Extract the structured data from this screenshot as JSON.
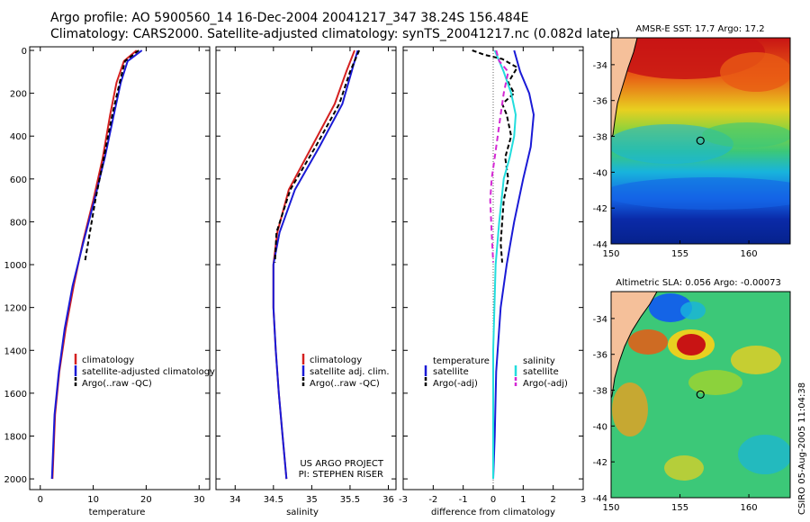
{
  "header": {
    "line1": "Argo profile: AO 5900560_14 16-Dec-2004 20041217_347 38.24S 156.484E",
    "line2": "Climatology: CARS2000. Satellite-adjusted climatology: synTS_20041217.nc (0.082d later)"
  },
  "colors": {
    "climatology": "#d42020",
    "satellite": "#1a1ad6",
    "argo": "#000000",
    "diff_salinity_sat": "#22dddd",
    "diff_salinity_argo": "#d428d4",
    "land": "#f5c09a"
  },
  "chart_data": [
    {
      "type": "line",
      "panel": "temperature",
      "xlabel": "temperature",
      "xlim": [
        -2,
        32
      ],
      "ylim": [
        0,
        2050
      ],
      "y_reversed": true,
      "xticks": [
        "0",
        "10",
        "20",
        "30"
      ],
      "yticks": [
        "0",
        "200",
        "400",
        "600",
        "800",
        "1000",
        "1200",
        "1400",
        "1600",
        "1800",
        "2000"
      ],
      "legend": [
        "climatology",
        "satellite-adjusted climatology",
        "Argo(..raw -QC)"
      ],
      "series": [
        {
          "name": "climatology",
          "x": [
            18.2,
            15.8,
            14.4,
            13.2,
            11.8,
            10.0,
            8.0,
            6.3,
            4.8,
            3.6,
            2.8,
            2.3
          ],
          "y": [
            0,
            50,
            150,
            300,
            500,
            700,
            900,
            1100,
            1300,
            1500,
            1700,
            2000
          ]
        },
        {
          "name": "satellite-adjusted climatology",
          "x": [
            19.2,
            16.5,
            15.2,
            13.9,
            12.2,
            10.2,
            8.1,
            6.1,
            4.6,
            3.5,
            2.7,
            2.2
          ],
          "y": [
            0,
            50,
            150,
            300,
            500,
            700,
            900,
            1100,
            1300,
            1500,
            1700,
            2000
          ]
        },
        {
          "name": "Argo(..raw -QC)",
          "x": [
            18.6,
            16.0,
            15.0,
            13.6,
            12.0,
            10.4,
            8.4
          ],
          "y": [
            0,
            50,
            150,
            300,
            500,
            700,
            990
          ]
        }
      ]
    },
    {
      "type": "line",
      "panel": "salinity",
      "xlabel": "salinity",
      "xlim": [
        33.75,
        36.1
      ],
      "ylim": [
        0,
        2050
      ],
      "y_reversed": true,
      "xticks": [
        "34",
        "34.5",
        "35",
        "35.5",
        "36"
      ],
      "legend": [
        "climatology",
        "satellite adj. clim.",
        "Argo(..raw -QC)"
      ],
      "series": [
        {
          "name": "climatology",
          "x": [
            35.56,
            35.45,
            35.3,
            35.0,
            34.7,
            34.55,
            34.5,
            34.5,
            34.53,
            34.57,
            34.62,
            34.67
          ],
          "y": [
            0,
            100,
            250,
            450,
            650,
            850,
            1000,
            1200,
            1400,
            1600,
            1800,
            2000
          ]
        },
        {
          "name": "satellite adj. clim.",
          "x": [
            35.6,
            35.52,
            35.4,
            35.1,
            34.78,
            34.58,
            34.5,
            34.5,
            34.53,
            34.57,
            34.62,
            34.67
          ],
          "y": [
            0,
            100,
            250,
            450,
            650,
            850,
            1000,
            1200,
            1400,
            1600,
            1800,
            2000
          ]
        },
        {
          "name": "Argo(..raw -QC)",
          "x": [
            35.62,
            35.5,
            35.36,
            35.05,
            34.72,
            34.54,
            34.52
          ],
          "y": [
            0,
            100,
            250,
            450,
            650,
            850,
            990
          ]
        }
      ],
      "annotation": [
        "US ARGO PROJECT",
        "PI: STEPHEN RISER"
      ]
    },
    {
      "type": "line",
      "panel": "difference",
      "xlabel": "difference from climatology",
      "xlim": [
        -3,
        3
      ],
      "ylim": [
        0,
        2050
      ],
      "y_reversed": true,
      "xticks": [
        "-3",
        "-2",
        "-1",
        "0",
        "1",
        "2",
        "3"
      ],
      "legend_temperature_title": "temperature",
      "legend_salinity_title": "salinity",
      "legend_temperature": [
        "satellite",
        "Argo(-adj)"
      ],
      "legend_salinity": [
        "satellite",
        "Argo(-adj)"
      ],
      "series": [
        {
          "name": "temperature satellite",
          "x": [
            0.7,
            0.9,
            1.2,
            1.35,
            1.25,
            1.0,
            0.7,
            0.45,
            0.25,
            0.1,
            0.05,
            0.0
          ],
          "y": [
            0,
            100,
            200,
            300,
            450,
            600,
            800,
            1000,
            1200,
            1500,
            1800,
            2000
          ]
        },
        {
          "name": "temperature Argo(-adj)",
          "x": [
            -0.7,
            -0.3,
            0.3,
            0.8,
            0.5,
            0.7,
            0.3,
            0.45,
            0.6,
            0.4,
            0.5,
            0.35,
            0.3,
            0.25,
            0.3
          ],
          "y": [
            0,
            20,
            40,
            80,
            150,
            200,
            250,
            300,
            400,
            500,
            600,
            700,
            800,
            900,
            990
          ]
        },
        {
          "name": "salinity satellite",
          "x": [
            0.05,
            0.35,
            0.6,
            0.75,
            0.7,
            0.55,
            0.35,
            0.2,
            0.08,
            0.0,
            0.0,
            0.0
          ],
          "y": [
            0,
            100,
            200,
            300,
            400,
            500,
            600,
            800,
            1000,
            1400,
            1800,
            2000
          ]
        },
        {
          "name": "salinity Argo(-adj)",
          "x": [
            0.1,
            0.2,
            0.5,
            0.35,
            0.25,
            0.15,
            0.05,
            -0.05,
            -0.1,
            -0.05,
            0.0
          ],
          "y": [
            0,
            50,
            100,
            200,
            300,
            400,
            500,
            600,
            700,
            850,
            990
          ]
        }
      ]
    },
    {
      "type": "heatmap",
      "panel": "sst_map",
      "title": "AMSR-E SST: 17.7 Argo: 17.2",
      "xlim": [
        150,
        163
      ],
      "ylim": [
        -44,
        -32.5
      ],
      "xticks": [
        "150",
        "155",
        "160"
      ],
      "yticks": [
        "-34",
        "-36",
        "-38",
        "-40",
        "-42",
        "-44"
      ],
      "marker": {
        "lon": 156.484,
        "lat": -38.24
      }
    },
    {
      "type": "heatmap",
      "panel": "sla_map",
      "title": "Altimetric SLA: 0.056 Argo: -0.00073",
      "xlim": [
        150,
        163
      ],
      "ylim": [
        -44,
        -32.5
      ],
      "xticks": [
        "150",
        "155",
        "160"
      ],
      "yticks": [
        "-34",
        "-36",
        "-38",
        "-40",
        "-42",
        "-44"
      ],
      "marker": {
        "lon": 156.484,
        "lat": -38.24
      }
    }
  ],
  "footer_stamp": "CSIRO 05-Aug-2005 11:04:38"
}
